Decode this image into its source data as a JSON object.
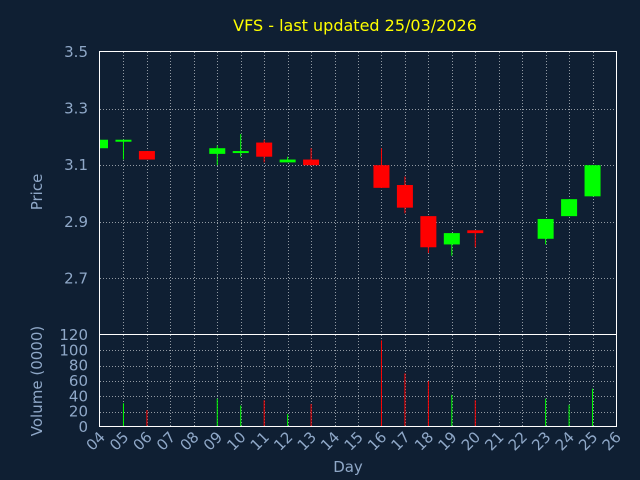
{
  "chart_data": {
    "type": "candlestick",
    "title": "VFS - last updated 25/03/2026",
    "xlabel": "Day",
    "ylabel_price": "Price",
    "ylabel_volume": "Volume (0000)",
    "x_ticks": [
      "04",
      "05",
      "06",
      "07",
      "08",
      "09",
      "10",
      "11",
      "12",
      "13",
      "14",
      "15",
      "16",
      "17",
      "18",
      "19",
      "20",
      "21",
      "22",
      "23",
      "24",
      "25",
      "26"
    ],
    "price_ylim": [
      2.5,
      3.5
    ],
    "price_ticks": [
      "3.5",
      "3.3",
      "3.1",
      "2.9",
      "2.7"
    ],
    "volume_ylim": [
      0,
      120
    ],
    "volume_ticks": [
      "120",
      "100",
      "80",
      "60",
      "40",
      "20",
      "0"
    ],
    "grid": true,
    "colors": {
      "up": "#00ff00",
      "down": "#ff0000",
      "background": "#0f1f33",
      "frame": "#ffffff",
      "title": "#ffff00",
      "text": "#8fa8c8"
    },
    "candles": [
      {
        "day": "04",
        "open": 3.16,
        "high": 3.19,
        "low": 3.16,
        "close": 3.19,
        "volume": 0
      },
      {
        "day": "05",
        "open": 3.19,
        "high": 3.19,
        "low": 3.12,
        "close": 3.19,
        "volume": 31
      },
      {
        "day": "06",
        "open": 3.15,
        "high": 3.15,
        "low": 3.12,
        "close": 3.12,
        "volume": 22
      },
      {
        "day": "09",
        "open": 3.14,
        "high": 3.17,
        "low": 3.1,
        "close": 3.16,
        "volume": 37
      },
      {
        "day": "10",
        "open": 3.15,
        "high": 3.21,
        "low": 3.13,
        "close": 3.15,
        "volume": 28
      },
      {
        "day": "11",
        "open": 3.18,
        "high": 3.19,
        "low": 3.11,
        "close": 3.13,
        "volume": 35
      },
      {
        "day": "12",
        "open": 3.11,
        "high": 3.13,
        "low": 3.11,
        "close": 3.12,
        "volume": 17
      },
      {
        "day": "13",
        "open": 3.12,
        "high": 3.16,
        "low": 3.1,
        "close": 3.1,
        "volume": 30
      },
      {
        "day": "16",
        "open": 3.1,
        "high": 3.16,
        "low": 3.02,
        "close": 3.02,
        "volume": 113
      },
      {
        "day": "17",
        "open": 3.03,
        "high": 3.06,
        "low": 2.93,
        "close": 2.95,
        "volume": 70
      },
      {
        "day": "18",
        "open": 2.92,
        "high": 2.92,
        "low": 2.79,
        "close": 2.81,
        "volume": 60
      },
      {
        "day": "19",
        "open": 2.82,
        "high": 2.86,
        "low": 2.78,
        "close": 2.86,
        "volume": 42
      },
      {
        "day": "20",
        "open": 2.87,
        "high": 2.87,
        "low": 2.81,
        "close": 2.86,
        "volume": 35
      },
      {
        "day": "23",
        "open": 2.84,
        "high": 2.91,
        "low": 2.82,
        "close": 2.91,
        "volume": 37
      },
      {
        "day": "24",
        "open": 2.92,
        "high": 2.98,
        "low": 2.92,
        "close": 2.98,
        "volume": 29
      },
      {
        "day": "25",
        "open": 2.99,
        "high": 3.1,
        "low": 2.99,
        "close": 3.1,
        "volume": 50
      }
    ]
  }
}
